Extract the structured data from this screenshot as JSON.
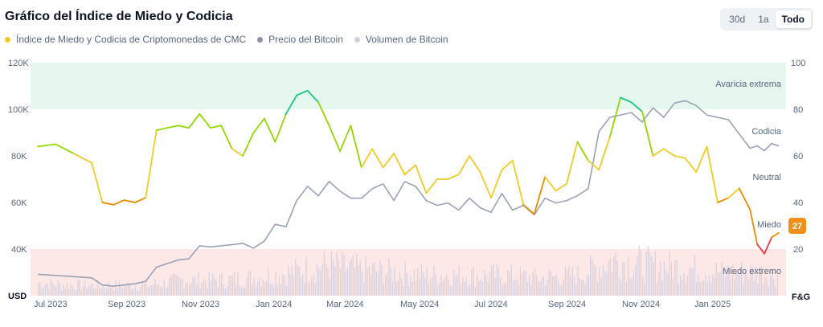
{
  "header": {
    "title": "Gráfico del Índice de Miedo y Codicia",
    "ranges": [
      {
        "label": "30d",
        "active": false
      },
      {
        "label": "1a",
        "active": false
      },
      {
        "label": "Todo",
        "active": true
      }
    ]
  },
  "legend": [
    {
      "label": "Índice de Miedo y Codicia de Criptomonedas de CMC",
      "color": "#f2cc26"
    },
    {
      "label": "Precio del Bitcoin",
      "color": "#8a93a6"
    },
    {
      "label": "Volumen de Bitcoin",
      "color": "#cfd3dc"
    }
  ],
  "chart_data": {
    "type": "line",
    "left_axis": {
      "unit": "USD",
      "ticks": [
        "120K",
        "100K",
        "80K",
        "60K",
        "40K"
      ],
      "values": [
        120000,
        100000,
        80000,
        60000,
        40000
      ],
      "ylim": [
        22000,
        120000
      ]
    },
    "right_axis": {
      "unit": "F&G",
      "ticks": [
        "100",
        "80",
        "60",
        "40",
        "20"
      ],
      "values": [
        100,
        80,
        60,
        40,
        20
      ],
      "ylim": [
        0,
        100
      ]
    },
    "x_ticks": [
      "Jul 2023",
      "Sep 2023",
      "Nov 2023",
      "Jan 2024",
      "Mar 2024",
      "May 2024",
      "Jul 2024",
      "Sep 2024",
      "Nov 2024",
      "Jan 2025",
      "F&G"
    ],
    "x_tick_months": [
      0,
      2,
      4,
      6,
      8,
      10,
      12,
      14,
      16,
      18
    ],
    "x_range_months": [
      -0.2,
      20.8
    ],
    "zones": [
      {
        "label": "Avaricia extrema",
        "from": 80,
        "to": 100,
        "color": "#e6f7ef"
      },
      {
        "label": "Codicia",
        "value": 66
      },
      {
        "label": "Neutral",
        "value": 48
      },
      {
        "label": "Miedo",
        "value": 28
      },
      {
        "label": "Miedo extremo",
        "from": 0,
        "to": 20,
        "color": "#fde8e8"
      }
    ],
    "current_value": "27",
    "series": [
      {
        "name": "Índice de Miedo y Codicia de Criptomonedas de CMC",
        "x": [
          0,
          0.5,
          1,
          1.5,
          1.8,
          2.1,
          2.4,
          2.7,
          3,
          3.3,
          3.6,
          3.9,
          4.2,
          4.5,
          4.8,
          5.1,
          5.4,
          5.7,
          6,
          6.3,
          6.6,
          6.9,
          7.2,
          7.5,
          7.8,
          8.1,
          8.4,
          8.7,
          9,
          9.3,
          9.6,
          9.9,
          10.2,
          10.5,
          10.8,
          11.1,
          11.4,
          11.7,
          12,
          12.3,
          12.6,
          12.9,
          13.2,
          13.5,
          13.8,
          14.1,
          14.4,
          14.7,
          15,
          15.3,
          15.6,
          15.9,
          16.2,
          16.5,
          16.8,
          17.1,
          17.4,
          17.7,
          18,
          18.3,
          18.6,
          18.9,
          19.2,
          19.5,
          19.8,
          20,
          20.2,
          20.4,
          20.6
        ],
        "values": [
          64,
          65,
          61,
          57,
          40,
          39,
          41,
          40,
          42,
          71,
          72,
          73,
          72,
          78,
          72,
          73,
          63,
          60,
          70,
          76,
          66,
          78,
          86,
          88,
          83,
          73,
          62,
          73,
          55,
          63,
          55,
          61,
          52,
          56,
          44,
          50,
          50,
          52,
          60,
          53,
          42,
          54,
          58,
          39,
          35,
          51,
          45,
          48,
          66,
          58,
          54,
          68,
          85,
          83,
          79,
          60,
          63,
          60,
          59,
          53,
          64,
          40,
          42,
          46,
          37,
          22,
          18,
          25,
          27
        ]
      },
      {
        "name": "Precio del Bitcoin",
        "x": [
          0,
          0.5,
          1,
          1.5,
          1.8,
          2.1,
          2.4,
          2.7,
          3,
          3.3,
          3.6,
          3.9,
          4.2,
          4.5,
          4.8,
          5.1,
          5.4,
          5.7,
          6,
          6.3,
          6.6,
          6.9,
          7.2,
          7.5,
          7.8,
          8.1,
          8.4,
          8.7,
          9,
          9.3,
          9.6,
          9.9,
          10.2,
          10.5,
          10.8,
          11.1,
          11.4,
          11.7,
          12,
          12.3,
          12.6,
          12.9,
          13.2,
          13.5,
          13.8,
          14.1,
          14.4,
          14.7,
          15,
          15.3,
          15.6,
          15.9,
          16.2,
          16.5,
          16.8,
          17.1,
          17.4,
          17.7,
          18,
          18.3,
          18.6,
          18.9,
          19.2,
          19.5,
          19.8,
          20,
          20.2,
          20.4,
          20.6
        ],
        "values": [
          31000,
          30500,
          30000,
          29500,
          26500,
          26000,
          26500,
          27000,
          28000,
          34000,
          35500,
          37000,
          37500,
          43000,
          42500,
          43000,
          43500,
          44000,
          42000,
          45000,
          52000,
          51000,
          62000,
          68000,
          64000,
          70000,
          66000,
          63000,
          63000,
          67000,
          69000,
          62000,
          70000,
          68000,
          62000,
          60000,
          61000,
          58000,
          63000,
          59000,
          57000,
          65000,
          58000,
          60000,
          56000,
          63000,
          61000,
          62000,
          64000,
          67000,
          91000,
          97000,
          98000,
          99000,
          95000,
          101000,
          97000,
          103000,
          104000,
          102000,
          98000,
          97000,
          96000,
          90000,
          84000,
          85000,
          83000,
          86000,
          85000
        ]
      },
      {
        "name": "Volumen de Bitcoin",
        "x": [
          0,
          1,
          2,
          3,
          4,
          5,
          6,
          7,
          8,
          9,
          10,
          11,
          12,
          13,
          14,
          15,
          16,
          17,
          18,
          19,
          20,
          20.6
        ],
        "values": [
          5,
          4,
          4,
          4,
          6,
          6,
          7,
          9,
          12,
          10,
          9,
          8,
          8,
          8,
          7,
          8,
          14,
          12,
          11,
          9,
          9,
          8
        ]
      }
    ]
  }
}
